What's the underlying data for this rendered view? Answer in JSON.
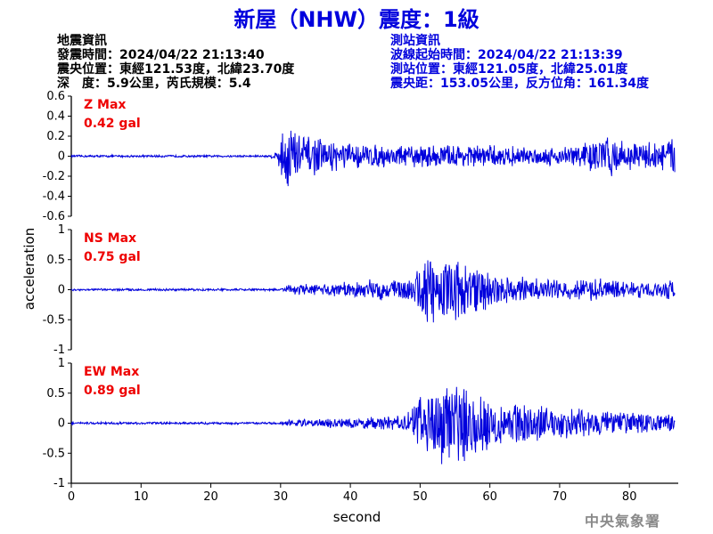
{
  "title": "新屋（NHW）震度：1級",
  "quake_info": [
    "地震資訊",
    "發震時間：2024/04/22 21:13:40",
    "震央位置：東經121.53度，北緯23.70度",
    "深　度：5.9公里，芮氏規模：5.4"
  ],
  "station_info": [
    "測站資訊",
    "波線起始時間：2024/04/22 21:13:39",
    "測站位置：東經121.05度，北緯25.01度",
    "震央距：153.05公里，反方位角：161.34度"
  ],
  "credit": "中央氣象署",
  "colors": {
    "trace": "#0000dd",
    "max_label": "#ee0000",
    "title": "#0000dd"
  },
  "chart_data": {
    "type": "line",
    "xlabel": "second",
    "ylabel": "acceleration",
    "xlim": [
      0,
      87
    ],
    "xticks": [
      0,
      10,
      20,
      30,
      40,
      50,
      60,
      70,
      80
    ],
    "grid": false,
    "panels": [
      {
        "name": "Z",
        "label": "Z Max",
        "max_text": "0.42 gal",
        "ylim": [
          -0.6,
          0.6
        ],
        "yticks": [
          -0.6,
          -0.4,
          -0.2,
          0,
          0.2,
          0.4,
          0.6
        ],
        "ytick_labels": [
          "-0.6",
          "-0.4",
          "-0.2",
          "0",
          "0.2",
          "0.4",
          "0.6"
        ],
        "envelope": [
          [
            0,
            0.012
          ],
          [
            28.5,
            0.012
          ],
          [
            29.5,
            0.06
          ],
          [
            30,
            0.25
          ],
          [
            31,
            0.35
          ],
          [
            31.5,
            0.42
          ],
          [
            32.5,
            0.3
          ],
          [
            34,
            0.22
          ],
          [
            36,
            0.18
          ],
          [
            40,
            0.14
          ],
          [
            45,
            0.12
          ],
          [
            50,
            0.12
          ],
          [
            55,
            0.13
          ],
          [
            60,
            0.12
          ],
          [
            65,
            0.1
          ],
          [
            70,
            0.1
          ],
          [
            76,
            0.2
          ],
          [
            77,
            0.24
          ],
          [
            80,
            0.14
          ],
          [
            85,
            0.18
          ],
          [
            86.5,
            0.22
          ]
        ]
      },
      {
        "name": "NS",
        "label": "NS Max",
        "max_text": "0.75 gal",
        "ylim": [
          -1,
          1
        ],
        "yticks": [
          -1,
          -0.5,
          0,
          0.5,
          1
        ],
        "ytick_labels": [
          "-1",
          "-0.5",
          "0",
          "0.5",
          "1"
        ],
        "envelope": [
          [
            0,
            0.02
          ],
          [
            30,
            0.02
          ],
          [
            31,
            0.08
          ],
          [
            33,
            0.12
          ],
          [
            36,
            0.1
          ],
          [
            40,
            0.15
          ],
          [
            45,
            0.2
          ],
          [
            48,
            0.2
          ],
          [
            49,
            0.25
          ],
          [
            50,
            0.45
          ],
          [
            51,
            0.7
          ],
          [
            52,
            0.6
          ],
          [
            54,
            0.5
          ],
          [
            56,
            0.55
          ],
          [
            58,
            0.45
          ],
          [
            60,
            0.35
          ],
          [
            62,
            0.25
          ],
          [
            65,
            0.22
          ],
          [
            70,
            0.18
          ],
          [
            75,
            0.2
          ],
          [
            80,
            0.15
          ],
          [
            85,
            0.15
          ],
          [
            86.5,
            0.22
          ]
        ]
      },
      {
        "name": "EW",
        "label": "EW Max",
        "max_text": "0.89 gal",
        "ylim": [
          -1,
          1
        ],
        "yticks": [
          -1,
          -0.5,
          0,
          0.5,
          1
        ],
        "ytick_labels": [
          "-1",
          "-0.5",
          "0",
          "0.5",
          "1"
        ],
        "envelope": [
          [
            0,
            0.02
          ],
          [
            30,
            0.02
          ],
          [
            31,
            0.06
          ],
          [
            35,
            0.08
          ],
          [
            40,
            0.1
          ],
          [
            45,
            0.12
          ],
          [
            48,
            0.18
          ],
          [
            49,
            0.3
          ],
          [
            50,
            0.55
          ],
          [
            51,
            0.65
          ],
          [
            53,
            0.75
          ],
          [
            54,
            0.85
          ],
          [
            55,
            0.7
          ],
          [
            57,
            0.65
          ],
          [
            60,
            0.5
          ],
          [
            62,
            0.4
          ],
          [
            65,
            0.35
          ],
          [
            70,
            0.3
          ],
          [
            75,
            0.25
          ],
          [
            80,
            0.2
          ],
          [
            85,
            0.15
          ],
          [
            86.5,
            0.2
          ]
        ]
      }
    ]
  }
}
